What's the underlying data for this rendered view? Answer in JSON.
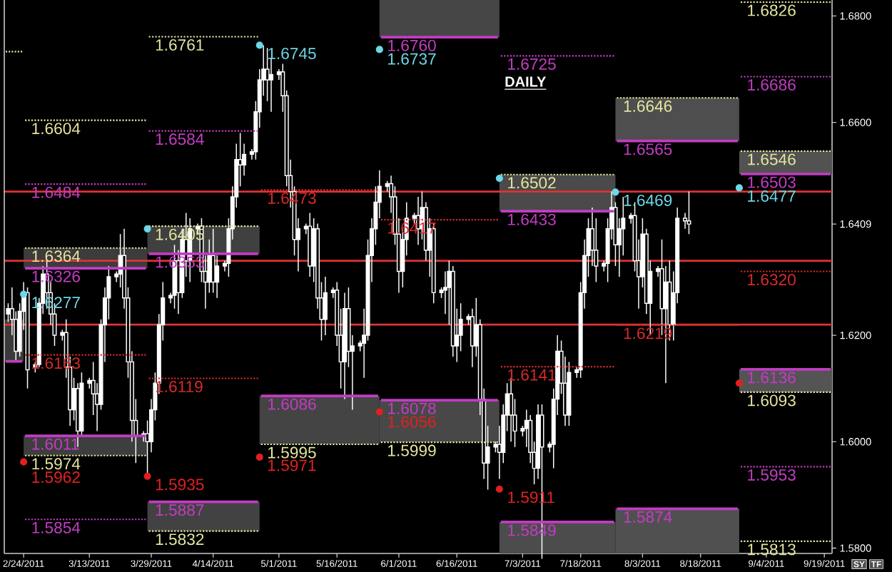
{
  "chart_data": {
    "type": "candlestick",
    "title": "DAILY",
    "annotations": [
      "SY",
      "TF"
    ],
    "xlim": [
      "2011-02-19",
      "2011-09-21"
    ],
    "ylim": [
      1.579,
      1.683
    ],
    "xticks": [
      {
        "value": "2011-02-24",
        "label": "2/24/2011"
      },
      {
        "value": "2011-03-13",
        "label": "3/13/2011"
      },
      {
        "value": "2011-03-29",
        "label": "3/29/2011"
      },
      {
        "value": "2011-04-14",
        "label": "4/14/2011"
      },
      {
        "value": "2011-05-01",
        "label": "5/1/2011"
      },
      {
        "value": "2011-05-16",
        "label": "5/16/2011"
      },
      {
        "value": "2011-06-01",
        "label": "6/1/2011"
      },
      {
        "value": "2011-06-16",
        "label": "6/16/2011"
      },
      {
        "value": "2011-07-03",
        "label": "7/3/2011"
      },
      {
        "value": "2011-07-18",
        "label": "7/18/2011"
      },
      {
        "value": "2011-08-03",
        "label": "8/3/2011"
      },
      {
        "value": "2011-08-18",
        "label": "8/18/2011"
      },
      {
        "value": "2011-09-04",
        "label": "9/4/2011"
      },
      {
        "value": "2011-09-19",
        "label": "9/19/2011"
      }
    ],
    "yticks": [
      {
        "value": 1.58,
        "label": "1.5800"
      },
      {
        "value": 1.6,
        "label": "1.6000"
      },
      {
        "value": 1.62,
        "label": "1.6200"
      },
      {
        "value": 1.6409,
        "label": "1.6409"
      },
      {
        "value": 1.66,
        "label": "1.6600"
      },
      {
        "value": 1.68,
        "label": "1.6800"
      }
    ],
    "ref_lines": [
      {
        "axis": "y",
        "value": 1.647,
        "color": "#e03232"
      },
      {
        "axis": "y",
        "value": 1.634,
        "color": "#e03232"
      },
      {
        "axis": "y",
        "value": 1.622,
        "color": "#e03232"
      }
    ],
    "series": [
      {
        "color": "#ffffff",
        "x": [
          "2011-02-20",
          "2011-02-21",
          "2011-02-22",
          "2011-02-23",
          "2011-02-24",
          "2011-02-25",
          "2011-02-27",
          "2011-02-28",
          "2011-03-01",
          "2011-03-02",
          "2011-03-03",
          "2011-03-04",
          "2011-03-06",
          "2011-03-07",
          "2011-03-08",
          "2011-03-09",
          "2011-03-10",
          "2011-03-11",
          "2011-03-13",
          "2011-03-14",
          "2011-03-15",
          "2011-03-16",
          "2011-03-17",
          "2011-03-18",
          "2011-03-20",
          "2011-03-21",
          "2011-03-22",
          "2011-03-23",
          "2011-03-24",
          "2011-03-25",
          "2011-03-27",
          "2011-03-28",
          "2011-03-29",
          "2011-03-30",
          "2011-03-31",
          "2011-04-01",
          "2011-04-03",
          "2011-04-04",
          "2011-04-05",
          "2011-04-06",
          "2011-04-07",
          "2011-04-08",
          "2011-04-10",
          "2011-04-11",
          "2011-04-12",
          "2011-04-13",
          "2011-04-14",
          "2011-04-15",
          "2011-04-17",
          "2011-04-18",
          "2011-04-19",
          "2011-04-20",
          "2011-04-21",
          "2011-04-22",
          "2011-04-24",
          "2011-04-25",
          "2011-04-26",
          "2011-04-27",
          "2011-04-28",
          "2011-04-29",
          "2011-05-01",
          "2011-05-02",
          "2011-05-03",
          "2011-05-04",
          "2011-05-05",
          "2011-05-06",
          "2011-05-08",
          "2011-05-09",
          "2011-05-10",
          "2011-05-11",
          "2011-05-12",
          "2011-05-13",
          "2011-05-15",
          "2011-05-16",
          "2011-05-17",
          "2011-05-18",
          "2011-05-19",
          "2011-05-20",
          "2011-05-22",
          "2011-05-23",
          "2011-05-24",
          "2011-05-25",
          "2011-05-26",
          "2011-05-27",
          "2011-05-29",
          "2011-05-30",
          "2011-05-31",
          "2011-06-01",
          "2011-06-02",
          "2011-06-03",
          "2011-06-05",
          "2011-06-06",
          "2011-06-07",
          "2011-06-08",
          "2011-06-09",
          "2011-06-10",
          "2011-06-12",
          "2011-06-13",
          "2011-06-14",
          "2011-06-15",
          "2011-06-16",
          "2011-06-17",
          "2011-06-19",
          "2011-06-20",
          "2011-06-21",
          "2011-06-22",
          "2011-06-23",
          "2011-06-24",
          "2011-06-26",
          "2011-06-27",
          "2011-06-28",
          "2011-06-29",
          "2011-06-30",
          "2011-07-01",
          "2011-07-03",
          "2011-07-04",
          "2011-07-05",
          "2011-07-06",
          "2011-07-07",
          "2011-07-08",
          "2011-07-10",
          "2011-07-11",
          "2011-07-12",
          "2011-07-13",
          "2011-07-14",
          "2011-07-15",
          "2011-07-17",
          "2011-07-18",
          "2011-07-19",
          "2011-07-20",
          "2011-07-21",
          "2011-07-22",
          "2011-07-24",
          "2011-07-25",
          "2011-07-26",
          "2011-07-27",
          "2011-07-28",
          "2011-07-29",
          "2011-07-31",
          "2011-08-01",
          "2011-08-02",
          "2011-08-03",
          "2011-08-04",
          "2011-08-05",
          "2011-08-07",
          "2011-08-08",
          "2011-08-09",
          "2011-08-10",
          "2011-08-11",
          "2011-08-12",
          "2011-08-14",
          "2011-08-15"
        ],
        "ohlc": [
          [
            1.624,
            1.626,
            1.6225,
            1.625
          ],
          [
            1.625,
            1.629,
            1.62,
            1.623
          ],
          [
            1.623,
            1.6245,
            1.615,
            1.617
          ],
          [
            1.617,
            1.626,
            1.616,
            1.6245
          ],
          [
            1.6245,
            1.63,
            1.621,
            1.628
          ],
          [
            1.628,
            1.629,
            1.61,
            1.6135
          ],
          [
            1.614,
            1.615,
            1.613,
            1.6145
          ],
          [
            1.6145,
            1.627,
            1.614,
            1.626
          ],
          [
            1.626,
            1.633,
            1.624,
            1.6315
          ],
          [
            1.6315,
            1.634,
            1.625,
            1.628
          ],
          [
            1.628,
            1.63,
            1.622,
            1.624
          ],
          [
            1.624,
            1.626,
            1.618,
            1.62
          ],
          [
            1.62,
            1.621,
            1.619,
            1.6205
          ],
          [
            1.6205,
            1.623,
            1.612,
            1.614
          ],
          [
            1.614,
            1.616,
            1.603,
            1.606
          ],
          [
            1.606,
            1.612,
            1.604,
            1.61
          ],
          [
            1.61,
            1.611,
            1.599,
            1.602
          ],
          [
            1.602,
            1.613,
            1.601,
            1.611
          ],
          [
            1.611,
            1.612,
            1.61,
            1.6115
          ],
          [
            1.6115,
            1.615,
            1.605,
            1.609
          ],
          [
            1.609,
            1.611,
            1.602,
            1.607
          ],
          [
            1.607,
            1.623,
            1.606,
            1.622
          ],
          [
            1.622,
            1.629,
            1.615,
            1.627
          ],
          [
            1.627,
            1.633,
            1.623,
            1.631
          ],
          [
            1.631,
            1.632,
            1.63,
            1.6315
          ],
          [
            1.6315,
            1.639,
            1.629,
            1.635
          ],
          [
            1.635,
            1.64,
            1.625,
            1.627
          ],
          [
            1.627,
            1.629,
            1.612,
            1.615
          ],
          [
            1.615,
            1.617,
            1.6,
            1.604
          ],
          [
            1.604,
            1.608,
            1.596,
            1.601
          ],
          [
            1.601,
            1.602,
            1.6,
            1.6015
          ],
          [
            1.6015,
            1.604,
            1.5935,
            1.6
          ],
          [
            1.6,
            1.608,
            1.598,
            1.606
          ],
          [
            1.606,
            1.613,
            1.604,
            1.611
          ],
          [
            1.611,
            1.624,
            1.609,
            1.622
          ],
          [
            1.622,
            1.63,
            1.619,
            1.627
          ],
          [
            1.627,
            1.628,
            1.626,
            1.6275
          ],
          [
            1.6275,
            1.637,
            1.625,
            1.634
          ],
          [
            1.634,
            1.636,
            1.624,
            1.628
          ],
          [
            1.628,
            1.64,
            1.627,
            1.638
          ],
          [
            1.638,
            1.643,
            1.631,
            1.634
          ],
          [
            1.634,
            1.642,
            1.63,
            1.64
          ],
          [
            1.64,
            1.641,
            1.639,
            1.6405
          ],
          [
            1.6405,
            1.642,
            1.63,
            1.632
          ],
          [
            1.632,
            1.635,
            1.625,
            1.63
          ],
          [
            1.63,
            1.638,
            1.628,
            1.635
          ],
          [
            1.635,
            1.64,
            1.628,
            1.63
          ],
          [
            1.63,
            1.635,
            1.627,
            1.633
          ],
          [
            1.633,
            1.634,
            1.632,
            1.6335
          ],
          [
            1.6335,
            1.642,
            1.631,
            1.64
          ],
          [
            1.64,
            1.648,
            1.638,
            1.646
          ],
          [
            1.646,
            1.656,
            1.644,
            1.653
          ],
          [
            1.653,
            1.658,
            1.648,
            1.652
          ],
          [
            1.652,
            1.656,
            1.65,
            1.654
          ],
          [
            1.654,
            1.655,
            1.653,
            1.6545
          ],
          [
            1.6545,
            1.664,
            1.653,
            1.662
          ],
          [
            1.662,
            1.67,
            1.659,
            1.668
          ],
          [
            1.668,
            1.6745,
            1.665,
            1.67
          ],
          [
            1.67,
            1.674,
            1.664,
            1.668
          ],
          [
            1.668,
            1.672,
            1.662,
            1.669
          ],
          [
            1.669,
            1.67,
            1.668,
            1.6695
          ],
          [
            1.6695,
            1.671,
            1.662,
            1.665
          ],
          [
            1.665,
            1.666,
            1.648,
            1.65
          ],
          [
            1.65,
            1.653,
            1.644,
            1.647
          ],
          [
            1.647,
            1.648,
            1.635,
            1.638
          ],
          [
            1.638,
            1.642,
            1.632,
            1.64
          ],
          [
            1.64,
            1.641,
            1.639,
            1.6405
          ],
          [
            1.6405,
            1.643,
            1.631,
            1.633
          ],
          [
            1.633,
            1.642,
            1.63,
            1.64
          ],
          [
            1.64,
            1.641,
            1.625,
            1.627
          ],
          [
            1.627,
            1.63,
            1.619,
            1.623
          ],
          [
            1.623,
            1.631,
            1.62,
            1.628
          ],
          [
            1.628,
            1.629,
            1.627,
            1.6285
          ],
          [
            1.6285,
            1.63,
            1.618,
            1.62
          ],
          [
            1.62,
            1.625,
            1.61,
            1.615
          ],
          [
            1.615,
            1.628,
            1.608,
            1.625
          ],
          [
            1.625,
            1.629,
            1.614,
            1.617
          ],
          [
            1.617,
            1.62,
            1.606,
            1.618
          ],
          [
            1.618,
            1.619,
            1.617,
            1.6185
          ],
          [
            1.6185,
            1.625,
            1.612,
            1.62
          ],
          [
            1.62,
            1.638,
            1.619,
            1.635
          ],
          [
            1.635,
            1.642,
            1.63,
            1.64
          ],
          [
            1.64,
            1.648,
            1.637,
            1.645
          ],
          [
            1.645,
            1.651,
            1.642,
            1.648
          ],
          [
            1.648,
            1.649,
            1.647,
            1.6485
          ],
          [
            1.6485,
            1.65,
            1.643,
            1.646
          ],
          [
            1.646,
            1.648,
            1.637,
            1.639
          ],
          [
            1.639,
            1.642,
            1.628,
            1.632
          ],
          [
            1.632,
            1.64,
            1.629,
            1.638
          ],
          [
            1.638,
            1.645,
            1.635,
            1.642
          ],
          [
            1.642,
            1.643,
            1.641,
            1.6425
          ],
          [
            1.6425,
            1.646,
            1.637,
            1.64
          ],
          [
            1.64,
            1.647,
            1.638,
            1.644
          ],
          [
            1.644,
            1.645,
            1.634,
            1.636
          ],
          [
            1.636,
            1.642,
            1.631,
            1.64
          ],
          [
            1.64,
            1.641,
            1.626,
            1.628
          ],
          [
            1.628,
            1.629,
            1.627,
            1.6285
          ],
          [
            1.6285,
            1.632,
            1.624,
            1.629
          ],
          [
            1.629,
            1.634,
            1.622,
            1.632
          ],
          [
            1.632,
            1.633,
            1.616,
            1.618
          ],
          [
            1.618,
            1.625,
            1.615,
            1.62
          ],
          [
            1.62,
            1.626,
            1.617,
            1.623
          ],
          [
            1.623,
            1.624,
            1.622,
            1.6235
          ],
          [
            1.6235,
            1.625,
            1.614,
            1.618
          ],
          [
            1.618,
            1.627,
            1.616,
            1.622
          ],
          [
            1.622,
            1.623,
            1.605,
            1.608
          ],
          [
            1.608,
            1.61,
            1.593,
            1.596
          ],
          [
            1.596,
            1.603,
            1.591,
            1.599
          ],
          [
            1.599,
            1.6,
            1.598,
            1.5995
          ],
          [
            1.5995,
            1.603,
            1.593,
            1.598
          ],
          [
            1.598,
            1.607,
            1.596,
            1.605
          ],
          [
            1.605,
            1.611,
            1.602,
            1.609
          ],
          [
            1.609,
            1.612,
            1.6,
            1.605
          ],
          [
            1.605,
            1.608,
            1.599,
            1.602
          ],
          [
            1.602,
            1.603,
            1.601,
            1.6025
          ],
          [
            1.6025,
            1.606,
            1.599,
            1.604
          ],
          [
            1.604,
            1.605,
            1.596,
            1.598
          ],
          [
            1.598,
            1.6,
            1.592,
            1.595
          ],
          [
            1.595,
            1.607,
            1.593,
            1.605
          ],
          [
            1.605,
            1.607,
            1.578,
            1.599
          ],
          [
            1.599,
            1.6,
            1.598,
            1.5995
          ],
          [
            1.5995,
            1.61,
            1.595,
            1.608
          ],
          [
            1.608,
            1.62,
            1.605,
            1.617
          ],
          [
            1.617,
            1.619,
            1.609,
            1.611
          ],
          [
            1.611,
            1.616,
            1.603,
            1.605
          ],
          [
            1.605,
            1.615,
            1.603,
            1.613
          ],
          [
            1.613,
            1.614,
            1.612,
            1.6135
          ],
          [
            1.6135,
            1.63,
            1.612,
            1.628
          ],
          [
            1.628,
            1.638,
            1.625,
            1.635
          ],
          [
            1.635,
            1.642,
            1.631,
            1.64
          ],
          [
            1.64,
            1.644,
            1.633,
            1.636
          ],
          [
            1.636,
            1.642,
            1.63,
            1.633
          ],
          [
            1.633,
            1.634,
            1.632,
            1.6335
          ],
          [
            1.6335,
            1.642,
            1.63,
            1.64
          ],
          [
            1.64,
            1.647,
            1.638,
            1.644
          ],
          [
            1.644,
            1.645,
            1.633,
            1.637
          ],
          [
            1.637,
            1.642,
            1.631,
            1.64
          ],
          [
            1.64,
            1.646,
            1.635,
            1.642
          ],
          [
            1.642,
            1.643,
            1.641,
            1.6425
          ],
          [
            1.6425,
            1.645,
            1.632,
            1.634
          ],
          [
            1.634,
            1.638,
            1.625,
            1.631
          ],
          [
            1.631,
            1.642,
            1.629,
            1.639
          ],
          [
            1.639,
            1.64,
            1.624,
            1.626
          ],
          [
            1.626,
            1.634,
            1.62,
            1.632
          ],
          [
            1.632,
            1.633,
            1.631,
            1.6325
          ],
          [
            1.6325,
            1.638,
            1.62,
            1.625
          ],
          [
            1.625,
            1.633,
            1.611,
            1.63
          ],
          [
            1.63,
            1.634,
            1.619,
            1.622
          ],
          [
            1.622,
            1.632,
            1.619,
            1.628
          ],
          [
            1.628,
            1.644,
            1.626,
            1.642
          ],
          [
            1.642,
            1.643,
            1.64,
            1.6415
          ],
          [
            1.6415,
            1.647,
            1.639,
            1.6409
          ]
        ]
      },
      {
        "type": "scatter",
        "color": "#6cd8e8",
        "marker": "circle",
        "x": [
          "2011-02-24",
          "2011-03-28",
          "2011-04-26",
          "2011-05-27",
          "2011-06-27",
          "2011-07-27",
          "2011-08-28"
        ],
        "values": [
          1.6277,
          1.64,
          1.6745,
          1.6737,
          1.6495,
          1.6469,
          1.6477
        ],
        "value_labels": [
          "1.6277",
          null,
          "1.6745",
          "1.6737",
          null,
          "1.6469",
          "1.6477"
        ]
      },
      {
        "type": "scatter",
        "color": "#e02020",
        "marker": "circle",
        "x": [
          "2011-02-24",
          "2011-03-28",
          "2011-04-26",
          "2011-05-27",
          "2011-06-27",
          "2011-08-28"
        ],
        "values": [
          1.5962,
          1.5935,
          1.5971,
          1.6056,
          1.5911,
          1.611
        ],
        "value_labels": [
          "1.5962",
          "1.5935",
          "1.5971",
          "1.6056",
          "1.5911",
          null
        ]
      },
      {
        "type": "line",
        "color": "#e6e6a0",
        "line_style": "dotted",
        "x": [
          "2011-02-19",
          "2011-02-24"
        ],
        "values": [
          1.6733,
          1.6733
        ]
      },
      {
        "type": "line",
        "color": "#e6e6a0",
        "line_style": "dotted",
        "name": "1.6604",
        "x": [
          "2011-02-24",
          "2011-03-28"
        ],
        "values": [
          1.6604,
          1.6604
        ]
      },
      {
        "type": "line",
        "color": "#c23cc2",
        "line_style": "dotted",
        "name": "1.6484",
        "x": [
          "2011-02-24",
          "2011-03-28"
        ],
        "values": [
          1.6484,
          1.6484
        ]
      },
      {
        "type": "line",
        "color": "#d42a2a",
        "line_style": "dotted",
        "name": "1.6163",
        "x": [
          "2011-02-24",
          "2011-03-28"
        ],
        "values": [
          1.6163,
          1.6163
        ]
      },
      {
        "type": "line",
        "color": "#c23cc2",
        "line_style": "dotted",
        "name": "1.5854",
        "x": [
          "2011-02-24",
          "2011-03-28"
        ],
        "values": [
          1.5854,
          1.5854
        ]
      },
      {
        "type": "line",
        "color": "#e6e6a0",
        "line_style": "dotted",
        "name": "1.6761",
        "x": [
          "2011-03-28",
          "2011-04-26"
        ],
        "values": [
          1.6761,
          1.6761
        ]
      },
      {
        "type": "line",
        "color": "#c23cc2",
        "line_style": "dotted",
        "name": "1.6584",
        "x": [
          "2011-03-28",
          "2011-04-26"
        ],
        "values": [
          1.6584,
          1.6584
        ]
      },
      {
        "type": "line",
        "color": "#d42a2a",
        "line_style": "dotted",
        "name": "1.6119",
        "x": [
          "2011-03-28",
          "2011-04-26"
        ],
        "values": [
          1.6119,
          1.6119
        ]
      },
      {
        "type": "line",
        "color": "#d42a2a",
        "line_style": "dotted",
        "name": "1.6473",
        "x": [
          "2011-04-26",
          "2011-05-27"
        ],
        "values": [
          1.6473,
          1.6473
        ]
      },
      {
        "type": "line",
        "color": "#d42a2a",
        "line_style": "dotted",
        "name": "1.6417",
        "x": [
          "2011-05-27",
          "2011-06-27"
        ],
        "values": [
          1.6417,
          1.6417
        ]
      },
      {
        "type": "line",
        "color": "#c23cc2",
        "line_style": "dotted",
        "name": "1.6725",
        "x": [
          "2011-06-27",
          "2011-07-27"
        ],
        "values": [
          1.6725,
          1.6725
        ]
      },
      {
        "type": "line",
        "color": "#d42a2a",
        "line_style": "dotted",
        "name": "1.6141",
        "x": [
          "2011-06-27",
          "2011-07-27"
        ],
        "values": [
          1.6141,
          1.6141
        ]
      },
      {
        "type": "line",
        "color": "#d42a2a",
        "line_style": "dotted",
        "name": "1.6219",
        "x": [
          "2011-07-27",
          "2011-08-28"
        ],
        "values": [
          1.6219,
          1.6219
        ]
      },
      {
        "type": "line",
        "color": "#e6e6a0",
        "line_style": "dotted",
        "name": "1.6826",
        "x": [
          "2011-08-28",
          "2011-09-21"
        ],
        "values": [
          1.6826,
          1.6826
        ]
      },
      {
        "type": "line",
        "color": "#c23cc2",
        "line_style": "dotted",
        "name": "1.6686",
        "x": [
          "2011-08-28",
          "2011-09-21"
        ],
        "values": [
          1.6686,
          1.6686
        ]
      },
      {
        "type": "line",
        "color": "#d42a2a",
        "line_style": "dotted",
        "name": "1.6320",
        "x": [
          "2011-08-28",
          "2011-09-21"
        ],
        "values": [
          1.632,
          1.632
        ]
      },
      {
        "type": "line",
        "color": "#c23cc2",
        "line_style": "dotted",
        "name": "1.5953",
        "x": [
          "2011-08-28",
          "2011-09-21"
        ],
        "values": [
          1.5953,
          1.5953
        ]
      },
      {
        "type": "line",
        "color": "#e6e6a0",
        "line_style": "dotted",
        "name": "1.5813",
        "x": [
          "2011-08-28",
          "2011-09-21"
        ],
        "values": [
          1.5813,
          1.5813
        ]
      },
      {
        "type": "line",
        "color": "#c23cc2",
        "line_style": "solid",
        "x": [
          "2011-02-19",
          "2011-02-24"
        ],
        "values": [
          1.6151,
          1.6151
        ],
        "lower": [
          1.6151,
          1.6151
        ],
        "upper": [
          1.623,
          1.623
        ]
      },
      {
        "type": "line",
        "color": "#e6e6a0",
        "line_style": "dotted",
        "name": "1.6364",
        "x": [
          "2011-02-24",
          "2011-03-28"
        ],
        "values": [
          1.6364,
          1.6364
        ]
      },
      {
        "type": "line",
        "color": "#c23cc2",
        "line_style": "solid",
        "name": "1.6326",
        "x": [
          "2011-02-24",
          "2011-03-28"
        ],
        "values": [
          1.6326,
          1.6326
        ],
        "lower": [
          1.6326,
          1.6326
        ],
        "upper": [
          1.6364,
          1.6364
        ]
      },
      {
        "type": "line",
        "color": "#c23cc2",
        "line_style": "solid",
        "name": "1.6011",
        "x": [
          "2011-02-24",
          "2011-03-28"
        ],
        "values": [
          1.6011,
          1.6011
        ],
        "lower": [
          1.5974,
          1.5974
        ],
        "upper": [
          1.6011,
          1.6011
        ]
      },
      {
        "type": "line",
        "color": "#e6e6a0",
        "line_style": "dotted",
        "name": "1.5974",
        "x": [
          "2011-02-24",
          "2011-03-28"
        ],
        "values": [
          1.5974,
          1.5974
        ]
      },
      {
        "type": "line",
        "color": "#e6e6a0",
        "line_style": "dotted",
        "name": "1.6405",
        "x": [
          "2011-03-28",
          "2011-04-26"
        ],
        "values": [
          1.6405,
          1.6405
        ]
      },
      {
        "type": "line",
        "color": "#c23cc2",
        "line_style": "solid",
        "name": "1.6353",
        "x": [
          "2011-03-28",
          "2011-04-26"
        ],
        "values": [
          1.6353,
          1.6353
        ],
        "lower": [
          1.6353,
          1.6353
        ],
        "upper": [
          1.6405,
          1.6405
        ]
      },
      {
        "type": "line",
        "color": "#c23cc2",
        "line_style": "solid",
        "name": "1.5887",
        "x": [
          "2011-03-28",
          "2011-04-26"
        ],
        "values": [
          1.5887,
          1.5887
        ],
        "lower": [
          1.5832,
          1.5832
        ],
        "upper": [
          1.5887,
          1.5887
        ]
      },
      {
        "type": "line",
        "color": "#e6e6a0",
        "line_style": "dotted",
        "name": "1.5832",
        "x": [
          "2011-03-28",
          "2011-04-26"
        ],
        "values": [
          1.5832,
          1.5832
        ]
      },
      {
        "type": "line",
        "color": "#c23cc2",
        "line_style": "solid",
        "name": "1.6086",
        "x": [
          "2011-04-26",
          "2011-05-27"
        ],
        "values": [
          1.6086,
          1.6086
        ],
        "lower": [
          1.5995,
          1.5995
        ],
        "upper": [
          1.6086,
          1.6086
        ]
      },
      {
        "type": "line",
        "color": "#e6e6a0",
        "line_style": "dotted",
        "name": "1.5995",
        "x": [
          "2011-04-26",
          "2011-05-27"
        ],
        "values": [
          1.5995,
          1.5995
        ]
      },
      {
        "type": "line",
        "color": "#c23cc2",
        "line_style": "solid",
        "name": "1.6760",
        "x": [
          "2011-05-27",
          "2011-06-27"
        ],
        "values": [
          1.676,
          1.676
        ],
        "lower": [
          1.676,
          1.676
        ],
        "upper": [
          1.683,
          1.683
        ]
      },
      {
        "type": "line",
        "color": "#c23cc2",
        "line_style": "solid",
        "name": "1.6078",
        "x": [
          "2011-05-27",
          "2011-06-27"
        ],
        "values": [
          1.6078,
          1.6078
        ],
        "lower": [
          1.5999,
          1.5999
        ],
        "upper": [
          1.6078,
          1.6078
        ]
      },
      {
        "type": "line",
        "color": "#e6e6a0",
        "line_style": "dotted",
        "name": "1.5999",
        "x": [
          "2011-05-27",
          "2011-06-27"
        ],
        "values": [
          1.5999,
          1.5999
        ]
      },
      {
        "type": "line",
        "color": "#e6e6a0",
        "line_style": "dotted",
        "name": "1.6502",
        "x": [
          "2011-06-27",
          "2011-07-27"
        ],
        "values": [
          1.6502,
          1.6502
        ]
      },
      {
        "type": "line",
        "color": "#c23cc2",
        "line_style": "solid",
        "name": "1.6433",
        "x": [
          "2011-06-27",
          "2011-07-27"
        ],
        "values": [
          1.6433,
          1.6433
        ],
        "lower": [
          1.6433,
          1.6433
        ],
        "upper": [
          1.6502,
          1.6502
        ]
      },
      {
        "type": "line",
        "color": "#c23cc2",
        "line_style": "solid",
        "name": "1.5849",
        "x": [
          "2011-06-27",
          "2011-07-27"
        ],
        "values": [
          1.5849,
          1.5849
        ],
        "lower": [
          1.579,
          1.579
        ],
        "upper": [
          1.5849,
          1.5849
        ]
      },
      {
        "type": "line",
        "color": "#e6e6a0",
        "line_style": "dotted",
        "name": "1.6646",
        "x": [
          "2011-07-27",
          "2011-08-28"
        ],
        "values": [
          1.6646,
          1.6646
        ]
      },
      {
        "type": "line",
        "color": "#c23cc2",
        "line_style": "solid",
        "name": "1.6565",
        "x": [
          "2011-07-27",
          "2011-08-28"
        ],
        "values": [
          1.6565,
          1.6565
        ],
        "lower": [
          1.6565,
          1.6565
        ],
        "upper": [
          1.6646,
          1.6646
        ]
      },
      {
        "type": "line",
        "color": "#c23cc2",
        "line_style": "solid",
        "name": "1.5874",
        "x": [
          "2011-07-27",
          "2011-08-28"
        ],
        "values": [
          1.5874,
          1.5874
        ],
        "lower": [
          1.579,
          1.579
        ],
        "upper": [
          1.5874,
          1.5874
        ]
      },
      {
        "type": "line",
        "color": "#e6e6a0",
        "line_style": "dotted",
        "name": "1.6546",
        "x": [
          "2011-08-28",
          "2011-09-21"
        ],
        "values": [
          1.6546,
          1.6546
        ]
      },
      {
        "type": "line",
        "color": "#c23cc2",
        "line_style": "solid",
        "name": "1.6503",
        "x": [
          "2011-08-28",
          "2011-09-21"
        ],
        "values": [
          1.6503,
          1.6503
        ],
        "lower": [
          1.6503,
          1.6503
        ],
        "upper": [
          1.6546,
          1.6546
        ]
      },
      {
        "type": "line",
        "color": "#c23cc2",
        "line_style": "solid",
        "name": "1.6136",
        "x": [
          "2011-08-28",
          "2011-09-21"
        ],
        "values": [
          1.6136,
          1.6136
        ],
        "lower": [
          1.6093,
          1.6093
        ],
        "upper": [
          1.6136,
          1.6136
        ]
      },
      {
        "type": "line",
        "color": "#e6e6a0",
        "line_style": "dotted",
        "name": "1.6093",
        "x": [
          "2011-08-28",
          "2011-09-21"
        ],
        "values": [
          1.6093,
          1.6093
        ]
      }
    ]
  }
}
